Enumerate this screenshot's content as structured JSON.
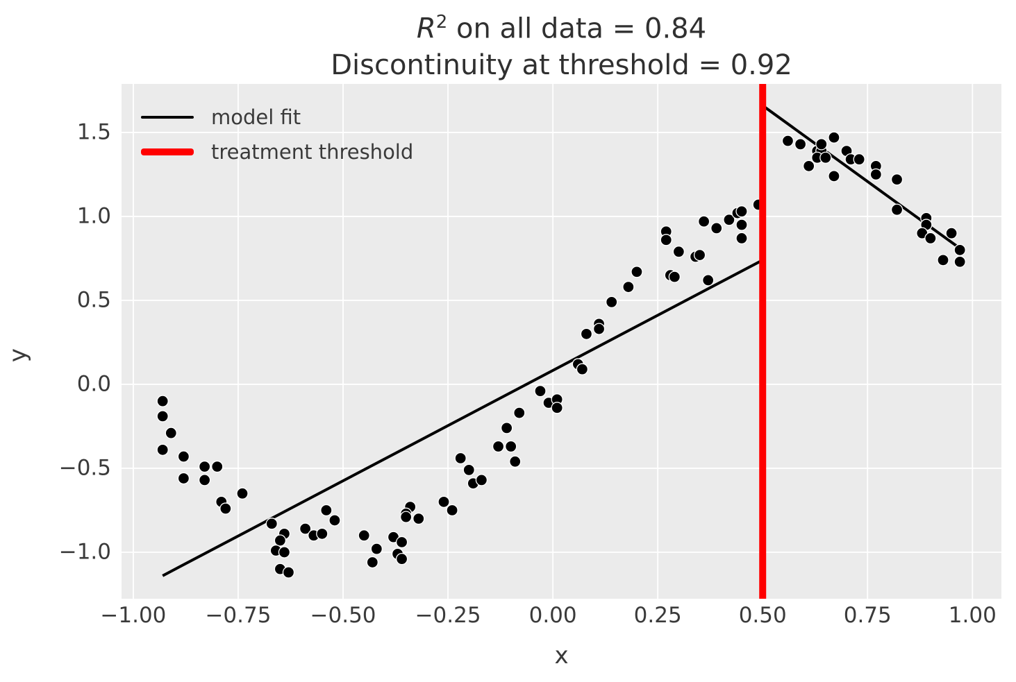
{
  "title": {
    "line1_math_base": "R",
    "line1_math_exp": "2",
    "line1_rest": " on all data = 0.84",
    "line2": "Discontinuity at threshold = 0.92"
  },
  "colors": {
    "plot_background": "#ebebeb",
    "grid": "#ffffff",
    "scatter": "#000000",
    "fit_line": "#000000",
    "threshold_line": "#ff0000",
    "text": "#3a3a3a"
  },
  "chart_data": {
    "type": "scatter",
    "title": "R² on all data = 0.84\nDiscontinuity at threshold = 0.92",
    "xlabel": "x",
    "ylabel": "y",
    "xlim": [
      -1.028,
      1.069
    ],
    "ylim": [
      -1.277,
      1.789
    ],
    "grid": true,
    "x_tick_values": [
      -1.0,
      -0.75,
      -0.5,
      -0.25,
      0.0,
      0.25,
      0.5,
      0.75,
      1.0
    ],
    "x_tick_labels": [
      "−1.00",
      "−0.75",
      "−0.50",
      "−0.25",
      "0.00",
      "0.25",
      "0.50",
      "0.75",
      "1.00"
    ],
    "y_tick_values": [
      -1.0,
      -0.5,
      0.0,
      0.5,
      1.0,
      1.5
    ],
    "y_tick_labels": [
      "−1.0",
      "−0.5",
      "0.0",
      "0.5",
      "1.0",
      "1.5"
    ],
    "legend": {
      "position": "upper-left",
      "entries": [
        {
          "label": "model fit",
          "color": "#000000",
          "sample_thickness": 4
        },
        {
          "label": "treatment threshold",
          "color": "#ff0000",
          "sample_thickness": 10
        }
      ]
    },
    "threshold_x": 0.5,
    "fit_line": {
      "comment_free": "piecewise linear model fit with jump at threshold",
      "points": [
        [
          -0.93,
          -1.14
        ],
        [
          0.5,
          0.74
        ],
        [
          0.5,
          1.66
        ],
        [
          0.97,
          0.81
        ]
      ]
    },
    "points": [
      [
        -0.93,
        -0.1
      ],
      [
        -0.93,
        -0.19
      ],
      [
        -0.91,
        -0.29
      ],
      [
        -0.93,
        -0.39
      ],
      [
        -0.88,
        -0.43
      ],
      [
        -0.83,
        -0.49
      ],
      [
        -0.8,
        -0.49
      ],
      [
        -0.88,
        -0.56
      ],
      [
        -0.83,
        -0.57
      ],
      [
        -0.74,
        -0.65
      ],
      [
        -0.79,
        -0.7
      ],
      [
        -0.78,
        -0.74
      ],
      [
        -0.67,
        -0.83
      ],
      [
        -0.64,
        -0.89
      ],
      [
        -0.65,
        -0.93
      ],
      [
        -0.66,
        -0.99
      ],
      [
        -0.64,
        -1.0
      ],
      [
        -0.65,
        -1.1
      ],
      [
        -0.63,
        -1.12
      ],
      [
        -0.59,
        -0.86
      ],
      [
        -0.57,
        -0.9
      ],
      [
        -0.55,
        -0.89
      ],
      [
        -0.54,
        -0.75
      ],
      [
        -0.52,
        -0.81
      ],
      [
        -0.45,
        -0.9
      ],
      [
        -0.42,
        -0.98
      ],
      [
        -0.43,
        -1.06
      ],
      [
        -0.38,
        -0.91
      ],
      [
        -0.36,
        -0.94
      ],
      [
        -0.37,
        -1.01
      ],
      [
        -0.36,
        -1.04
      ],
      [
        -0.34,
        -0.73
      ],
      [
        -0.35,
        -0.77
      ],
      [
        -0.35,
        -0.79
      ],
      [
        -0.32,
        -0.8
      ],
      [
        -0.26,
        -0.7
      ],
      [
        -0.24,
        -0.75
      ],
      [
        -0.22,
        -0.44
      ],
      [
        -0.2,
        -0.51
      ],
      [
        -0.19,
        -0.59
      ],
      [
        -0.17,
        -0.57
      ],
      [
        -0.13,
        -0.37
      ],
      [
        -0.11,
        -0.26
      ],
      [
        -0.1,
        -0.37
      ],
      [
        -0.09,
        -0.46
      ],
      [
        -0.08,
        -0.17
      ],
      [
        -0.03,
        -0.04
      ],
      [
        -0.01,
        -0.11
      ],
      [
        0.01,
        -0.09
      ],
      [
        0.01,
        -0.14
      ],
      [
        0.06,
        0.12
      ],
      [
        0.07,
        0.09
      ],
      [
        0.08,
        0.3
      ],
      [
        0.11,
        0.36
      ],
      [
        0.11,
        0.33
      ],
      [
        0.14,
        0.49
      ],
      [
        0.18,
        0.58
      ],
      [
        0.2,
        0.67
      ],
      [
        0.27,
        0.91
      ],
      [
        0.27,
        0.86
      ],
      [
        0.3,
        0.79
      ],
      [
        0.28,
        0.65
      ],
      [
        0.29,
        0.64
      ],
      [
        0.34,
        0.76
      ],
      [
        0.35,
        0.77
      ],
      [
        0.36,
        0.97
      ],
      [
        0.39,
        0.93
      ],
      [
        0.37,
        0.62
      ],
      [
        0.42,
        0.98
      ],
      [
        0.44,
        1.02
      ],
      [
        0.45,
        1.03
      ],
      [
        0.45,
        0.95
      ],
      [
        0.45,
        0.87
      ],
      [
        0.49,
        1.07
      ],
      [
        0.56,
        1.45
      ],
      [
        0.59,
        1.43
      ],
      [
        0.61,
        1.3
      ],
      [
        0.63,
        1.39
      ],
      [
        0.64,
        1.39
      ],
      [
        0.64,
        1.43
      ],
      [
        0.67,
        1.47
      ],
      [
        0.63,
        1.35
      ],
      [
        0.65,
        1.35
      ],
      [
        0.67,
        1.24
      ],
      [
        0.7,
        1.39
      ],
      [
        0.71,
        1.34
      ],
      [
        0.73,
        1.34
      ],
      [
        0.77,
        1.3
      ],
      [
        0.77,
        1.25
      ],
      [
        0.82,
        1.22
      ],
      [
        0.82,
        1.04
      ],
      [
        0.89,
        0.99
      ],
      [
        0.89,
        0.95
      ],
      [
        0.88,
        0.9
      ],
      [
        0.9,
        0.87
      ],
      [
        0.95,
        0.9
      ],
      [
        0.97,
        0.8
      ],
      [
        0.93,
        0.74
      ],
      [
        0.97,
        0.73
      ]
    ],
    "marker": {
      "radius": 8,
      "edge_color": "#ffffff",
      "edge_width": 1.3
    },
    "fit_line_width": 4,
    "threshold_line_width": 10,
    "grid_line_width": 1.8
  }
}
